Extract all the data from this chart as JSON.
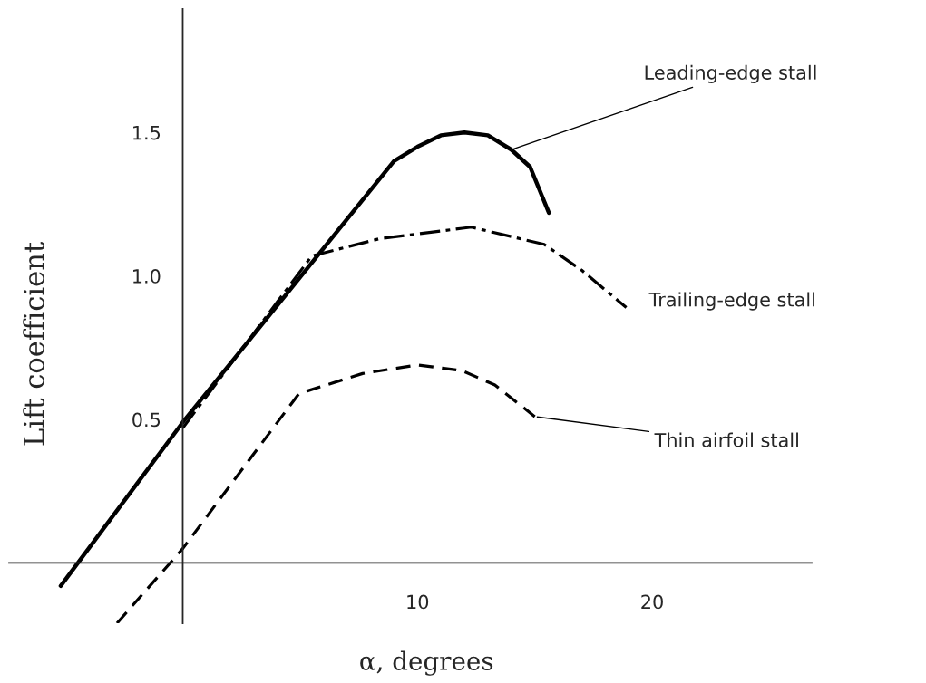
{
  "chart_data": {
    "type": "line",
    "xlabel": "α, degrees",
    "ylabel": "Lift coefficient",
    "series": [
      {
        "name": "Leading-edge stall",
        "color": "#000000",
        "line_style": "solid",
        "x": [
          -5.2,
          0,
          9.0,
          10,
          11,
          12,
          13,
          14,
          14.8,
          15.6
        ],
        "values": [
          -0.08,
          0.49,
          1.4,
          1.45,
          1.49,
          1.5,
          1.49,
          1.44,
          1.38,
          1.22
        ]
      },
      {
        "name": "Trailing-edge stall",
        "color": "#000000",
        "line_style": "dashdot",
        "x": [
          0,
          5.5,
          8.4,
          12.3,
          15.4,
          17,
          18.9
        ],
        "values": [
          0.47,
          1.07,
          1.13,
          1.17,
          1.11,
          1.02,
          0.89
        ]
      },
      {
        "name": "Thin airfoil stall",
        "color": "#000000",
        "line_style": "dashed",
        "x": [
          -2.8,
          0,
          4.95,
          7.66,
          10,
          11.9,
          13.3,
          15
        ],
        "values": [
          -0.21,
          0.05,
          0.59,
          0.66,
          0.69,
          0.67,
          0.62,
          0.51
        ]
      }
    ],
    "xlim": [
      -7.4,
      26.8
    ],
    "ylim": [
      -0.21,
      1.93
    ],
    "xticks": [
      10,
      20
    ],
    "yticks": [
      0.5,
      {
        "value": 1,
        "label": "1.0"
      },
      1.5
    ],
    "grid": false,
    "legend": false,
    "marker": "none"
  }
}
